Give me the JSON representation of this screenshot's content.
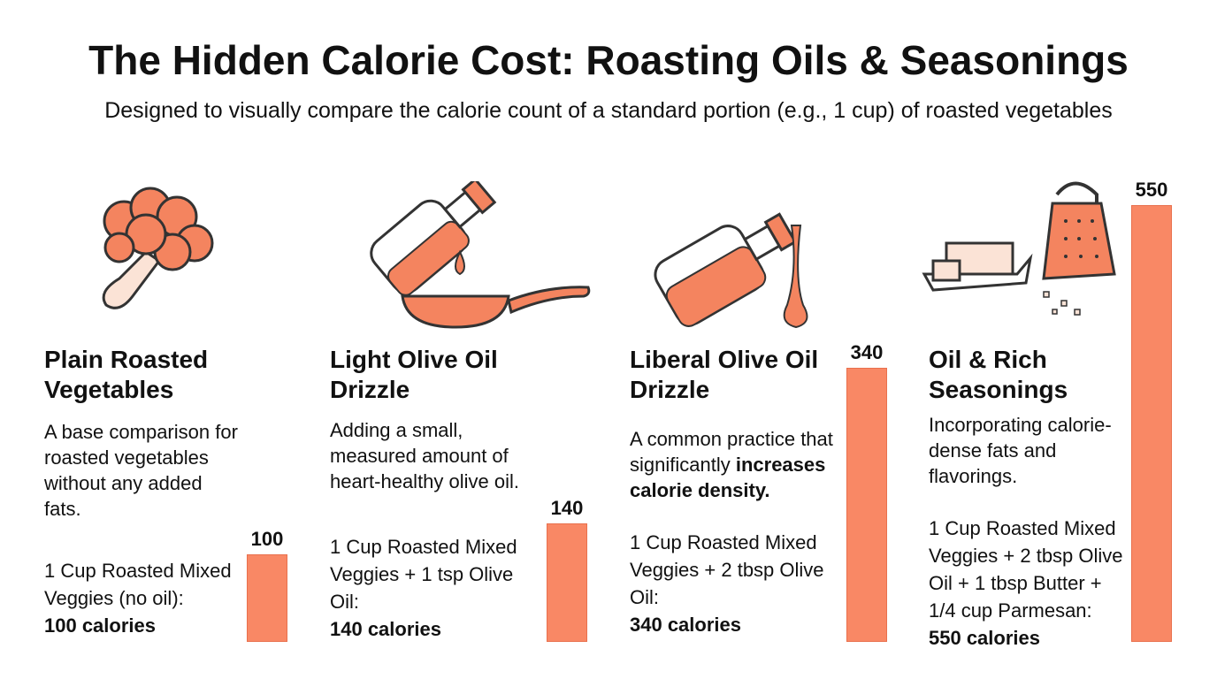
{
  "title": "The Hidden Calorie Cost: Roasting Oils & Seasonings",
  "subtitle": "Designed to visually compare the calorie count of a standard portion (e.g., 1 cup) of roasted vegetables",
  "colors": {
    "bar": "#F98865",
    "accent": "#F4845F"
  },
  "sections": [
    {
      "icon": "broccoli-icon",
      "heading": "Plain Roasted Vegetables",
      "desc": "A base comparison for roasted vegetables without any added fats.",
      "desc_bold": "",
      "detail": "1 Cup Roasted Mixed Veggies (no oil):",
      "calories": "100 calories"
    },
    {
      "icon": "oil-bottle-pan-icon",
      "heading": "Light Olive Oil Drizzle",
      "desc": "Adding a small, measured amount of heart-healthy olive oil.",
      "desc_bold": "",
      "detail": "1 Cup Roasted Mixed Veggies + 1 tsp Olive Oil:",
      "calories": "140 calories"
    },
    {
      "icon": "pouring-oil-icon",
      "heading": "Liberal Olive Oil Drizzle",
      "desc": "A common practice that significantly",
      "desc_bold": "increases calorie density.",
      "detail": "1 Cup Roasted Mixed Veggies + 2 tbsp Olive Oil:",
      "calories": "340 calories"
    },
    {
      "icon": "butter-grater-icon",
      "heading": "Oil & Rich Seasonings",
      "desc": "Incorporating calorie-dense fats and flavorings.",
      "desc_bold": "",
      "detail": "1 Cup Roasted Mixed Veggies + 2 tbsp Olive Oil + 1 tbsp Butter + 1/4 cup Parmesan:",
      "calories": "550 calories"
    }
  ],
  "chart_data": {
    "type": "bar",
    "categories": [
      "Plain Roasted Vegetables",
      "Light Olive Oil Drizzle",
      "Liberal Olive Oil Drizzle",
      "Oil & Rich Seasonings"
    ],
    "values": [
      100,
      140,
      340,
      550
    ],
    "data_labels": [
      "100",
      "140",
      "340",
      "550"
    ],
    "title": "",
    "xlabel": "",
    "ylabel": "",
    "grid": false
  }
}
